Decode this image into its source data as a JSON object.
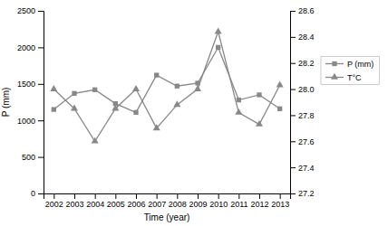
{
  "chart_data": {
    "type": "line",
    "x": [
      2002,
      2003,
      2004,
      2005,
      2006,
      2007,
      2008,
      2009,
      2010,
      2011,
      2012,
      2013
    ],
    "xlim": [
      2001.5,
      2013.5
    ],
    "xticks": [
      2002,
      2003,
      2004,
      2005,
      2006,
      2007,
      2008,
      2009,
      2010,
      2011,
      2012,
      2013
    ],
    "x_label": "Time (year)",
    "y_label": "P (mm)",
    "ylim": [
      0,
      2500
    ],
    "yticks": [
      0,
      500,
      1000,
      1500,
      2000,
      2500
    ],
    "y2lim": [
      27.2,
      28.6
    ],
    "y2ticks": [
      27.2,
      27.4,
      27.6,
      27.8,
      {
        "value": 28.0,
        "label": "28.0"
      },
      28.2,
      28.4,
      28.6
    ],
    "grid": false,
    "legend": "right",
    "series": [
      {
        "name": "P (mm)",
        "color": "#888888",
        "marker": "square",
        "values": [
          1150,
          1370,
          1420,
          1230,
          1110,
          1620,
          1470,
          1510,
          2000,
          1280,
          1350,
          1160
        ]
      },
      {
        "name": "T°C",
        "color": "#888888",
        "marker": "triangle",
        "axis": "y2",
        "values": [
          28.0,
          27.85,
          27.6,
          27.85,
          28.0,
          27.7,
          27.88,
          28.0,
          28.44,
          27.82,
          27.73,
          28.03
        ]
      }
    ]
  }
}
